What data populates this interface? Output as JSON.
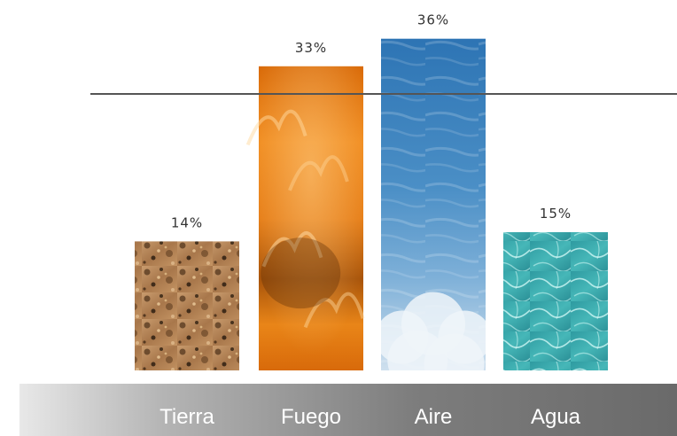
{
  "chart_data": {
    "type": "bar",
    "categories": [
      "Tierra",
      "Fuego",
      "Aire",
      "Agua"
    ],
    "values": [
      14,
      33,
      36,
      15
    ],
    "value_labels": [
      "14%",
      "33%",
      "36%",
      "15%"
    ],
    "reference_line": 30,
    "ylim": [
      0,
      38
    ],
    "title": "",
    "xlabel": "",
    "ylabel": "",
    "grid": false,
    "legend": "none",
    "bar_textures": [
      "earth",
      "fire",
      "sky",
      "water"
    ]
  },
  "colors": {
    "earth": "#b98a5e",
    "fire": "#e07a10",
    "sky": "#3e86c0",
    "water": "#3fb0b0",
    "reference_line": "#555555",
    "category_band_dark": "#6e6e6e",
    "category_band_light": "#e6e6e6"
  }
}
